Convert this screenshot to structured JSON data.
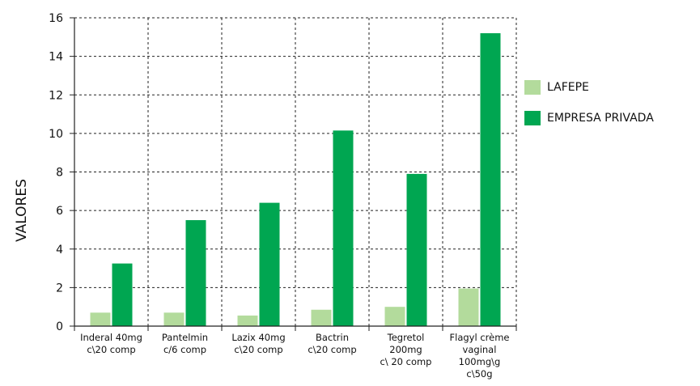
{
  "chart_data": {
    "type": "bar",
    "title": "",
    "xlabel": "",
    "ylabel": "VALORES",
    "ylim": [
      0,
      16
    ],
    "yticks": [
      0,
      2,
      4,
      6,
      8,
      10,
      12,
      14,
      16
    ],
    "grid": true,
    "legend_position": "right",
    "categories": [
      [
        "Inderal 40mg",
        "c\\20 comp"
      ],
      [
        "Pantelmin",
        "c/6 comp"
      ],
      [
        "Lazix 40mg",
        "c\\20 comp"
      ],
      [
        "Bactrin",
        "c\\20 comp"
      ],
      [
        "Tegretol",
        "200mg",
        "c\\ 20 comp"
      ],
      [
        "Flagyl crème",
        "vaginal",
        "100mg\\g",
        "c\\50g"
      ]
    ],
    "series": [
      {
        "name": "LAFEPE",
        "color": "#b3db9c",
        "values": [
          0.7,
          0.7,
          0.55,
          0.85,
          1.0,
          1.95
        ]
      },
      {
        "name": "EMPRESA PRIVADA",
        "color": "#00a651",
        "values": [
          3.25,
          5.5,
          6.4,
          10.15,
          7.9,
          15.2
        ]
      }
    ]
  }
}
